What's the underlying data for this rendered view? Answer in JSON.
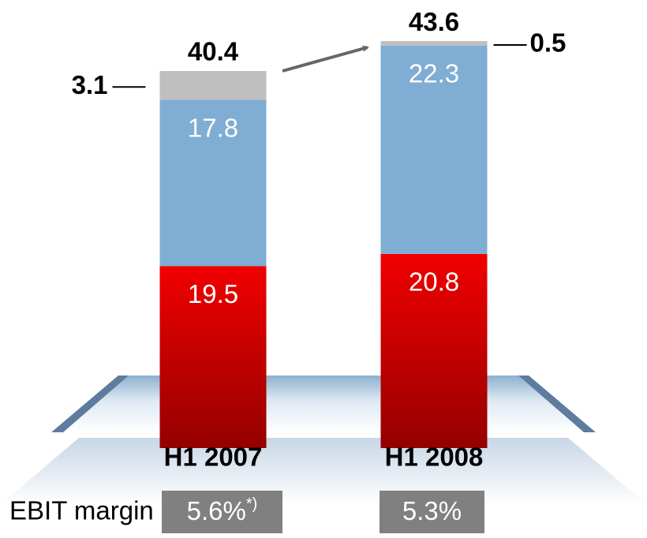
{
  "chart_data": {
    "type": "stacked_bar",
    "categories": [
      "H1 2007",
      "H1 2008"
    ],
    "series": [
      {
        "color": "#f00000",
        "values": [
          19.5,
          20.8
        ]
      },
      {
        "color": "#7fadd3",
        "values": [
          17.8,
          22.3
        ]
      },
      {
        "color": "#bfbfbf",
        "values": [
          3.1,
          0.5
        ]
      }
    ],
    "totals": [
      40.4,
      43.6
    ],
    "ylim": [
      0,
      48
    ],
    "margin": {
      "label": "EBIT margin",
      "values": [
        5.6,
        5.3
      ],
      "value_labels": [
        "5.6%",
        "5.3%"
      ],
      "footnote_marks": [
        "*)",
        null
      ]
    }
  }
}
